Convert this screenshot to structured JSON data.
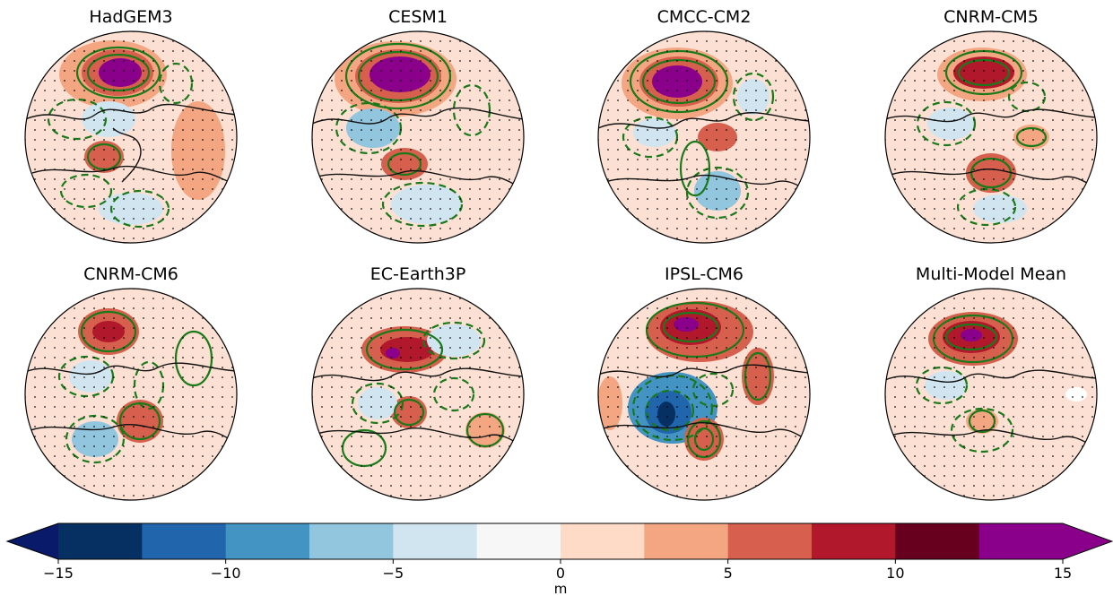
{
  "chart_data": {
    "type": "heatmap",
    "projection": "north-polar-stereographic",
    "panels": [
      {
        "title": "HadGEM3"
      },
      {
        "title": "CESM1"
      },
      {
        "title": "CMCC-CM2"
      },
      {
        "title": "CNRM-CM5"
      },
      {
        "title": "CNRM-CM6"
      },
      {
        "title": "EC-Earth3P"
      },
      {
        "title": "IPSL-CM6"
      },
      {
        "title": "Multi-Model Mean"
      }
    ],
    "colorbar": {
      "unit": "m",
      "range": [
        -15,
        15
      ],
      "levels": [
        -15,
        -12.5,
        -10,
        -7.5,
        -5,
        -2.5,
        0,
        2.5,
        5,
        7.5,
        10,
        12.5,
        15
      ],
      "tick_values": [
        -15,
        -10,
        -5,
        0,
        5,
        10,
        15
      ],
      "tick_labels": [
        "−15",
        "−10",
        "−5",
        "0",
        "5",
        "10",
        "15"
      ],
      "colors": [
        "#053061",
        "#2166ac",
        "#4393c3",
        "#92c5de",
        "#d1e5f0",
        "#f7f7f7",
        "#fddbc7",
        "#f4a582",
        "#d6604d",
        "#b2182b",
        "#67001f",
        "#8b008b"
      ],
      "extend": "both",
      "under_color": "#0a1a6b",
      "over_color": "#8b008b"
    },
    "contour_color": "#1a7a1a",
    "contour_styles": [
      "solid (positive)",
      "dashed (negative)"
    ],
    "stippling": "dots"
  }
}
